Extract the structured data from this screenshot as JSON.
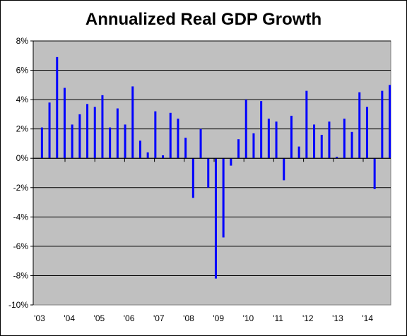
{
  "chart_data": {
    "type": "bar",
    "title": "Annualized Real GDP Growth",
    "xlabel": "",
    "ylabel": "",
    "ylim": [
      -10,
      8
    ],
    "ytick_step": 2,
    "y_tick_labels": [
      "8%",
      "6%",
      "4%",
      "2%",
      "0%",
      "-2%",
      "-4%",
      "-6%",
      "-8%",
      "-10%"
    ],
    "x_tick_labels": [
      "'03",
      "'04",
      "'05",
      "'06",
      "'07",
      "'08",
      "'09",
      "'10",
      "'11",
      "'12",
      "'13",
      "'14"
    ],
    "grid": true,
    "legend": "none",
    "colors": {
      "bar": "#0000ff",
      "plot_background": "#c0c0c0",
      "gridline": "#000000"
    },
    "series": [
      {
        "values": [
          2.1,
          3.8,
          6.9,
          4.8,
          2.3,
          3.0,
          3.7,
          3.5,
          4.3,
          2.1,
          3.4,
          2.3,
          4.9,
          1.2,
          0.4,
          3.2,
          0.2,
          3.1,
          2.7,
          1.4,
          -2.7,
          2.0,
          -2.0,
          -8.2,
          -5.4,
          -0.5,
          1.3,
          4.0,
          1.7,
          3.9,
          2.7,
          2.5,
          -1.5,
          2.9,
          0.8,
          4.6,
          2.3,
          1.6,
          2.5,
          0.1,
          2.7,
          1.8,
          4.5,
          3.5,
          -2.1,
          4.6,
          5.0
        ]
      }
    ]
  }
}
